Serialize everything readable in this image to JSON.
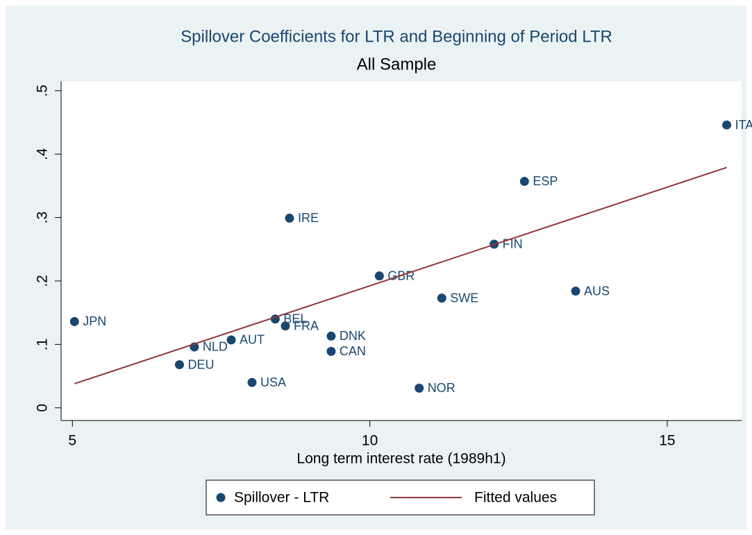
{
  "chart_data": {
    "type": "scatter",
    "title": "Spillover Coefficients for LTR and Beginning of Period LTR",
    "subtitle": "All Sample",
    "x_label": "Long term interest rate (1989h1)",
    "xlim": [
      4.81,
      16.25
    ],
    "xticks": [
      5,
      10,
      15
    ],
    "ylim": [
      -0.02,
      0.515
    ],
    "yticks": [
      0,
      {
        "value": 0.1,
        "label": ".1"
      },
      {
        "value": 0.2,
        "label": ".2"
      },
      {
        "value": 0.3,
        "label": ".3"
      },
      {
        "value": 0.4,
        "label": ".4"
      },
      {
        "value": 0.5,
        "label": ".5"
      }
    ],
    "grid": false,
    "legend": "bottom",
    "series": [
      {
        "name": "Spillover - LTR",
        "color": "#1a476f",
        "mode": "markers",
        "x": [
          5.035,
          6.8,
          7.05,
          7.67,
          8.02,
          8.41,
          8.58,
          8.65,
          9.35,
          9.35,
          10.16,
          10.83,
          11.21,
          12.09,
          12.6,
          13.46,
          16.0
        ],
        "values": [
          0.136,
          0.068,
          0.096,
          0.107,
          0.04,
          0.14,
          0.129,
          0.299,
          0.113,
          0.089,
          0.208,
          0.031,
          0.173,
          0.258,
          0.357,
          0.184,
          0.446
        ],
        "labels": [
          "JPN",
          "DEU",
          "NLD",
          "AUT",
          "USA",
          "BEL",
          "FRA",
          "IRE",
          "DNK",
          "CAN",
          "GBR",
          "NOR",
          "SWE",
          "FIN",
          "ESP",
          "AUS",
          "ITA"
        ]
      },
      {
        "name": "Fitted values",
        "color": "#90353b",
        "mode": "line",
        "x": [
          5.035,
          16.0
        ],
        "values": [
          0.038,
          0.379
        ]
      }
    ]
  }
}
